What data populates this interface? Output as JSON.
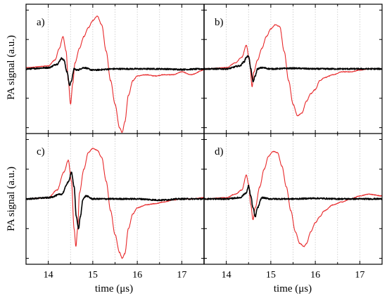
{
  "chart_data": {
    "type": "line",
    "layout": "2x2 grid of panels sharing x axis",
    "ylabel": "PA signal (a.u.)",
    "xlabel": "time (μs)",
    "xlim": [
      13.5,
      17.5
    ],
    "xticks": [
      14,
      15,
      16,
      17
    ],
    "ylim": [
      -1.1,
      1.1
    ],
    "y_tick_labels_shown": false,
    "vertical_gridlines": "dotted at half-microsecond steps",
    "series_colors": {
      "red": "#e8292b",
      "black": "#000000"
    },
    "panels": [
      {
        "label": "a)",
        "series": [
          {
            "color": "red",
            "x": [
              13.5,
              14.0,
              14.15,
              14.25,
              14.33,
              14.4,
              14.45,
              14.5,
              14.55,
              14.6,
              14.7,
              14.8,
              14.9,
              15.0,
              15.1,
              15.2,
              15.3,
              15.4,
              15.5,
              15.6,
              15.66,
              15.72,
              15.8,
              15.9,
              16.0,
              16.2,
              16.4,
              16.6,
              16.8,
              17.0,
              17.2,
              17.5
            ],
            "y": [
              0.02,
              0.05,
              0.15,
              0.35,
              0.55,
              0.3,
              -0.2,
              -0.6,
              -0.25,
              0.1,
              0.35,
              0.55,
              0.7,
              0.82,
              0.9,
              0.75,
              0.3,
              -0.2,
              -0.6,
              -1.0,
              -1.08,
              -0.9,
              -0.45,
              -0.2,
              -0.12,
              -0.1,
              -0.12,
              -0.1,
              -0.1,
              -0.05,
              -0.1,
              -0.02
            ]
          },
          {
            "color": "black",
            "x": [
              13.5,
              14.0,
              14.2,
              14.3,
              14.35,
              14.42,
              14.48,
              14.52,
              14.58,
              14.65,
              14.8,
              15.0,
              15.5,
              16.0,
              16.5,
              17.0,
              17.5
            ],
            "y": [
              0.0,
              0.02,
              0.08,
              0.18,
              0.15,
              -0.05,
              -0.28,
              -0.2,
              0.0,
              -0.02,
              0.02,
              -0.02,
              0.0,
              0.0,
              0.0,
              -0.01,
              0.0
            ]
          }
        ]
      },
      {
        "label": "b)",
        "series": [
          {
            "color": "red",
            "x": [
              13.5,
              14.0,
              14.2,
              14.35,
              14.45,
              14.52,
              14.58,
              14.62,
              14.7,
              14.8,
              14.9,
              15.0,
              15.1,
              15.2,
              15.3,
              15.4,
              15.5,
              15.6,
              15.7,
              15.8,
              15.9,
              16.0,
              16.1,
              16.2,
              16.4,
              16.6,
              16.8,
              17.0,
              17.2,
              17.5
            ],
            "y": [
              0.0,
              0.02,
              0.1,
              0.2,
              0.4,
              0.15,
              -0.3,
              -0.05,
              0.15,
              0.35,
              0.55,
              0.68,
              0.75,
              0.72,
              0.3,
              -0.2,
              -0.6,
              -0.8,
              -0.75,
              -0.55,
              -0.42,
              -0.35,
              -0.2,
              -0.15,
              -0.1,
              -0.05,
              -0.05,
              -0.02,
              0.0,
              0.0
            ]
          },
          {
            "color": "black",
            "x": [
              13.5,
              14.0,
              14.3,
              14.4,
              14.45,
              14.5,
              14.55,
              14.6,
              14.65,
              14.7,
              14.8,
              15.0,
              15.5,
              16.0,
              16.5,
              17.0,
              17.5
            ],
            "y": [
              0.0,
              0.0,
              0.05,
              0.12,
              0.2,
              0.22,
              0.0,
              -0.22,
              -0.12,
              0.0,
              0.02,
              0.0,
              0.01,
              0.0,
              0.0,
              0.0,
              0.0
            ]
          }
        ]
      },
      {
        "label": "c)",
        "series": [
          {
            "color": "red",
            "x": [
              13.5,
              14.0,
              14.2,
              14.35,
              14.45,
              14.52,
              14.58,
              14.62,
              14.66,
              14.7,
              14.8,
              14.9,
              15.0,
              15.1,
              15.2,
              15.3,
              15.4,
              15.5,
              15.6,
              15.66,
              15.72,
              15.8,
              15.9,
              16.0,
              16.2,
              16.4,
              16.6,
              16.8,
              17.0,
              17.2,
              17.5
            ],
            "y": [
              0.0,
              0.02,
              0.15,
              0.45,
              0.65,
              0.3,
              -0.5,
              -0.8,
              -0.5,
              0.1,
              0.5,
              0.78,
              0.85,
              0.82,
              0.7,
              0.3,
              -0.2,
              -0.6,
              -0.9,
              -1.0,
              -0.92,
              -0.5,
              -0.25,
              -0.15,
              -0.1,
              -0.08,
              -0.05,
              -0.02,
              0.0,
              0.0,
              0.02
            ]
          },
          {
            "color": "black",
            "x": [
              13.5,
              14.0,
              14.3,
              14.45,
              14.52,
              14.58,
              14.63,
              14.68,
              14.72,
              14.78,
              14.85,
              15.0,
              15.5,
              16.0,
              16.5,
              17.0,
              17.5
            ],
            "y": [
              0.0,
              0.02,
              0.08,
              0.28,
              0.45,
              0.2,
              -0.3,
              -0.5,
              -0.3,
              0.0,
              0.05,
              0.0,
              0.0,
              0.0,
              -0.02,
              0.0,
              0.0
            ]
          }
        ]
      },
      {
        "label": "d)",
        "series": [
          {
            "color": "red",
            "x": [
              13.5,
              14.0,
              14.2,
              14.35,
              14.45,
              14.5,
              14.55,
              14.6,
              14.65,
              14.75,
              14.85,
              14.95,
              15.05,
              15.15,
              15.25,
              15.35,
              15.45,
              15.55,
              15.65,
              15.75,
              15.8,
              15.9,
              16.0,
              16.1,
              16.2,
              16.4,
              16.6,
              16.8,
              17.0,
              17.2,
              17.5
            ],
            "y": [
              0.0,
              0.02,
              0.08,
              0.15,
              0.4,
              0.25,
              -0.1,
              -0.35,
              -0.15,
              0.2,
              0.5,
              0.72,
              0.8,
              0.78,
              0.55,
              0.2,
              -0.2,
              -0.55,
              -0.75,
              -0.8,
              -0.75,
              -0.55,
              -0.4,
              -0.3,
              -0.2,
              -0.1,
              -0.05,
              0.0,
              0.05,
              0.08,
              0.05
            ]
          },
          {
            "color": "black",
            "x": [
              13.5,
              14.0,
              14.3,
              14.45,
              14.5,
              14.55,
              14.6,
              14.65,
              14.7,
              14.8,
              15.0,
              15.5,
              16.0,
              16.5,
              17.0,
              17.5
            ],
            "y": [
              0.0,
              0.0,
              0.02,
              0.1,
              0.22,
              0.05,
              -0.15,
              -0.3,
              -0.15,
              0.02,
              0.0,
              0.0,
              0.01,
              0.0,
              0.0,
              0.0
            ]
          }
        ]
      }
    ]
  }
}
